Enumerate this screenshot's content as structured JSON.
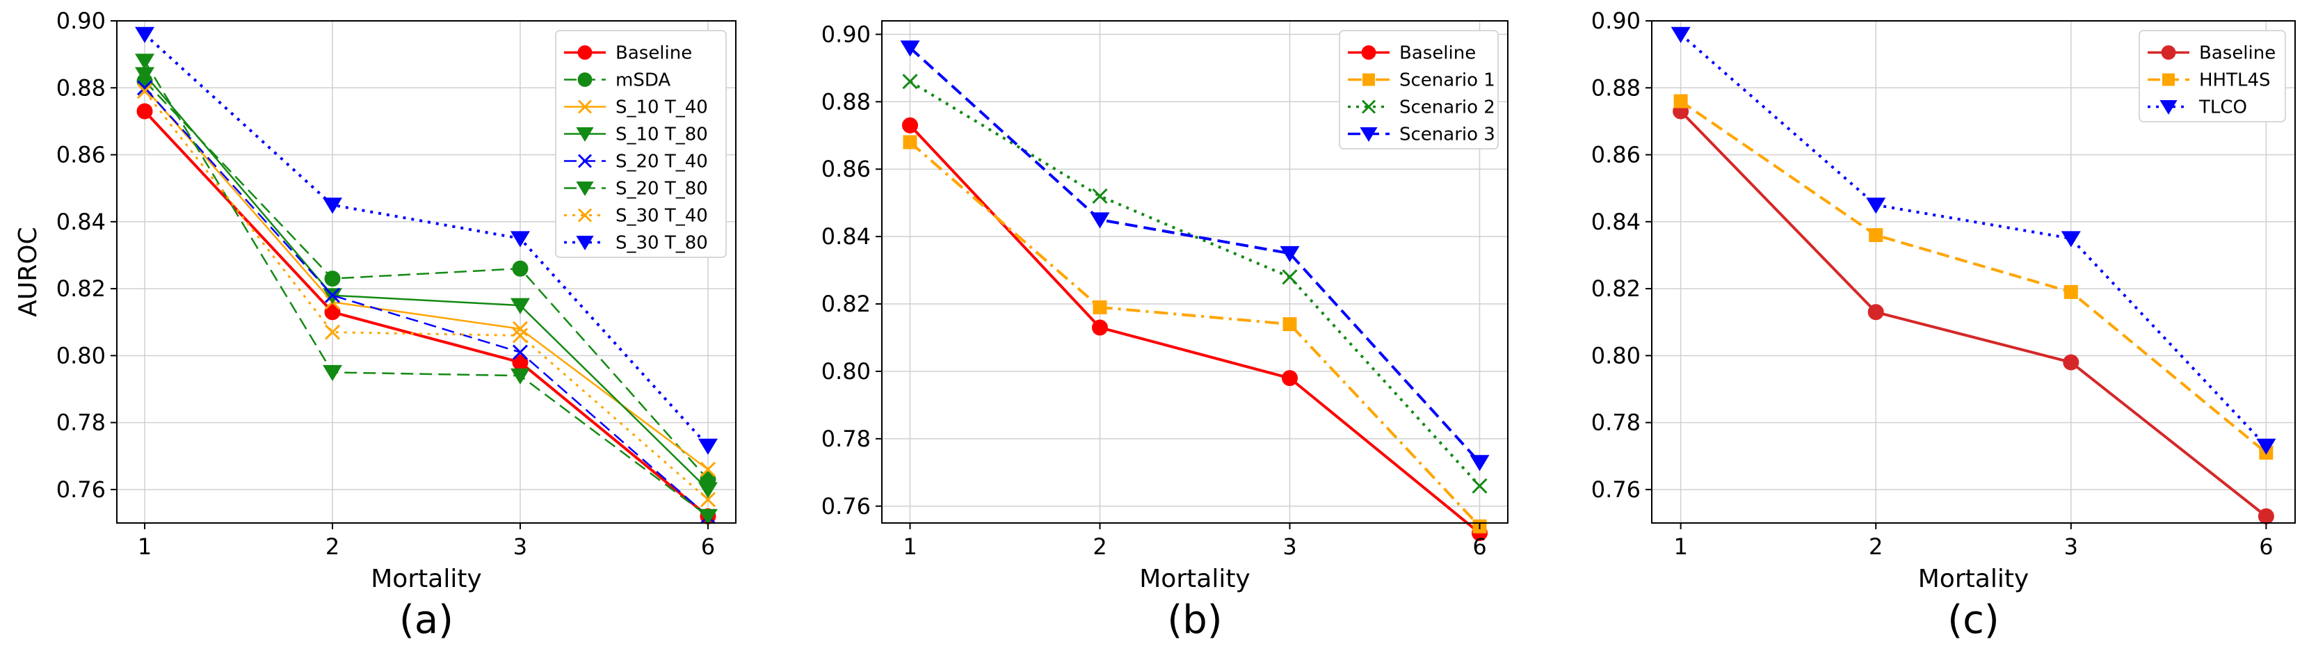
{
  "chart_data": [
    {
      "type": "line",
      "panel_label": "(a)",
      "xlabel": "Mortality",
      "ylabel": "AUROC",
      "categories": [
        "1",
        "2",
        "3",
        "6"
      ],
      "ylim": [
        0.75,
        0.9
      ],
      "yticks": [
        "0.76",
        "0.78",
        "0.80",
        "0.82",
        "0.84",
        "0.86",
        "0.88",
        "0.90"
      ],
      "grid": true,
      "legend_position": "top-right",
      "series": [
        {
          "name": "Baseline",
          "values": [
            0.873,
            0.813,
            0.798,
            0.752
          ],
          "color": "#ff0000",
          "dash": "solid",
          "marker": "circle",
          "width": 4
        },
        {
          "name": "mSDA",
          "values": [
            0.882,
            0.823,
            0.826,
            0.763
          ],
          "color": "#138a13",
          "dash": "dashed",
          "marker": "circle",
          "width": 2.5
        },
        {
          "name": "S_10 T_40",
          "values": [
            0.88,
            0.816,
            0.808,
            0.766
          ],
          "color": "#ffa500",
          "dash": "solid",
          "marker": "x",
          "width": 2.5
        },
        {
          "name": "S_10 T_80",
          "values": [
            0.884,
            0.818,
            0.815,
            0.76
          ],
          "color": "#138a13",
          "dash": "solid",
          "marker": "triangle-down",
          "width": 2.5
        },
        {
          "name": "S_20 T_40",
          "values": [
            0.88,
            0.818,
            0.801,
            0.752
          ],
          "color": "#0000ff",
          "dash": "dashed",
          "marker": "x",
          "width": 2.5
        },
        {
          "name": "S_20 T_80",
          "values": [
            0.888,
            0.795,
            0.794,
            0.752
          ],
          "color": "#138a13",
          "dash": "dashed",
          "marker": "triangle-down",
          "width": 2.5
        },
        {
          "name": "S_30 T_40",
          "values": [
            0.879,
            0.807,
            0.806,
            0.757
          ],
          "color": "#ffa500",
          "dash": "dotted",
          "marker": "x",
          "width": 3
        },
        {
          "name": "S_30 T_80",
          "values": [
            0.896,
            0.845,
            0.835,
            0.773
          ],
          "color": "#0000ff",
          "dash": "dotted",
          "marker": "triangle-down",
          "width": 4
        }
      ]
    },
    {
      "type": "line",
      "panel_label": "(b)",
      "xlabel": "Mortality",
      "ylabel": "",
      "categories": [
        "1",
        "2",
        "3",
        "6"
      ],
      "ylim": [
        0.755,
        0.904
      ],
      "yticks": [
        "0.76",
        "0.78",
        "0.80",
        "0.82",
        "0.84",
        "0.86",
        "0.88",
        "0.90"
      ],
      "grid": true,
      "legend_position": "top-right",
      "series": [
        {
          "name": "Baseline",
          "values": [
            0.873,
            0.813,
            0.798,
            0.752
          ],
          "color": "#ff0000",
          "dash": "solid",
          "marker": "circle",
          "width": 4
        },
        {
          "name": "Scenario 1",
          "values": [
            0.868,
            0.819,
            0.814,
            0.754
          ],
          "color": "#ffa500",
          "dash": "dashdot",
          "marker": "square",
          "width": 4
        },
        {
          "name": "Scenario 2",
          "values": [
            0.886,
            0.852,
            0.828,
            0.766
          ],
          "color": "#138a13",
          "dash": "dotted",
          "marker": "x",
          "width": 4
        },
        {
          "name": "Scenario 3",
          "values": [
            0.896,
            0.845,
            0.835,
            0.773
          ],
          "color": "#0000ff",
          "dash": "dashed",
          "marker": "triangle-down",
          "width": 4
        }
      ]
    },
    {
      "type": "line",
      "panel_label": "(c)",
      "xlabel": "Mortality",
      "ylabel": "",
      "categories": [
        "1",
        "2",
        "3",
        "6"
      ],
      "ylim": [
        0.75,
        0.9
      ],
      "yticks": [
        "0.76",
        "0.78",
        "0.80",
        "0.82",
        "0.84",
        "0.86",
        "0.88",
        "0.90"
      ],
      "grid": true,
      "legend_position": "top-right",
      "series": [
        {
          "name": "Baseline",
          "values": [
            0.873,
            0.813,
            0.798,
            0.752
          ],
          "color": "#d62728",
          "dash": "solid",
          "marker": "circle",
          "width": 4
        },
        {
          "name": "HHTL4S",
          "values": [
            0.876,
            0.836,
            0.819,
            0.771
          ],
          "color": "#ffa500",
          "dash": "dashed",
          "marker": "square",
          "width": 4
        },
        {
          "name": "TLCO",
          "values": [
            0.896,
            0.845,
            0.835,
            0.773
          ],
          "color": "#0000ff",
          "dash": "dotted",
          "marker": "triangle-down",
          "width": 4
        }
      ]
    }
  ]
}
